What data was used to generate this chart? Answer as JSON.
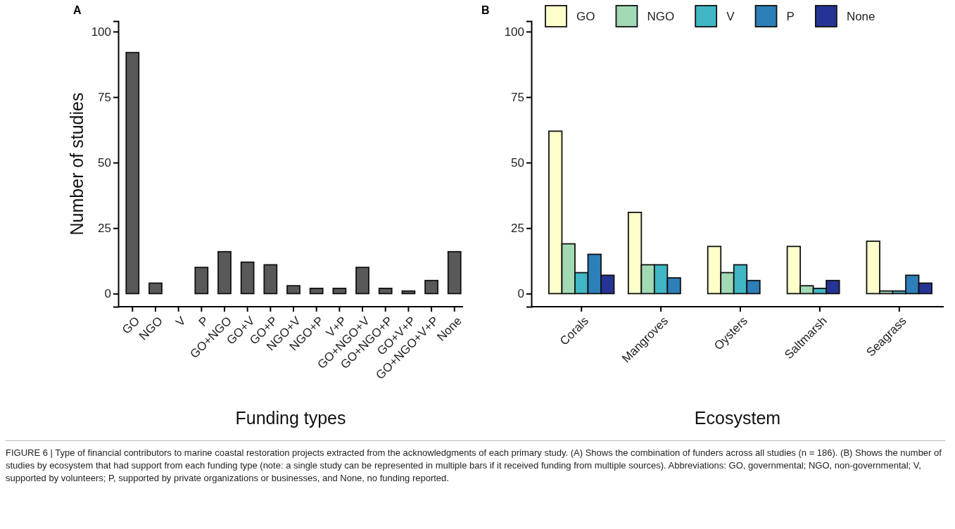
{
  "chart_data": [
    {
      "type": "bar",
      "categories": [
        "GO",
        "NGO",
        "V",
        "P",
        "GO+NGO",
        "GO+V",
        "GO+P",
        "NGO+V",
        "NGO+P",
        "V+P",
        "GO+NGO+V",
        "GO+NGO+P",
        "GO+V+P",
        "GO+NGO+V+P",
        "None"
      ],
      "series": [
        {
          "color": "#595959",
          "values": [
            92,
            4,
            0,
            10,
            16,
            12,
            11,
            3,
            2,
            2,
            10,
            2,
            1,
            5,
            16
          ]
        }
      ],
      "xlabel": "Funding types",
      "ylabel": "Number of studies",
      "ylim": [
        -5,
        104
      ],
      "yticks": [
        0,
        25,
        50,
        75,
        100
      ],
      "legend": false,
      "annotations": [
        "A",
        "FIGURE 6 | Type of financial contributors to marine coastal restoration projects extracted from the acknowledgments of each primary study. (A) Shows the combination of funders across all studies (n = 186). (B) Shows the number of studies by ecosystem that had support from each funding type (note: a single study can be represented in multiple bars if it received funding from multiple sources). Abbreviations: GO, governmental; NGO, non-governmental; V, supported by volunteers; P, supported by private organizations or businesses, and None, no funding reported."
      ]
    },
    {
      "type": "bar",
      "categories": [
        "Corals",
        "Mangroves",
        "Oysters",
        "Saltmarsh",
        "Seagrass"
      ],
      "series": [
        {
          "name": "GO",
          "color": "#ffffcc",
          "values": [
            62,
            31,
            18,
            18,
            20
          ]
        },
        {
          "name": "NGO",
          "color": "#a1dab4",
          "values": [
            19,
            11,
            8,
            3,
            1
          ]
        },
        {
          "name": "V",
          "color": "#41b6c4",
          "values": [
            8,
            11,
            11,
            2,
            1
          ]
        },
        {
          "name": "P",
          "color": "#2c7fb8",
          "values": [
            15,
            6,
            5,
            null,
            7
          ]
        },
        {
          "name": "None",
          "color": "#253494",
          "values": [
            7,
            null,
            null,
            5,
            4
          ]
        }
      ],
      "xlabel": "Ecosystem",
      "ylim": [
        -5,
        104
      ],
      "yticks": [
        0,
        25,
        50,
        75,
        100
      ],
      "legend": "top",
      "annotations": [
        "B"
      ]
    }
  ]
}
